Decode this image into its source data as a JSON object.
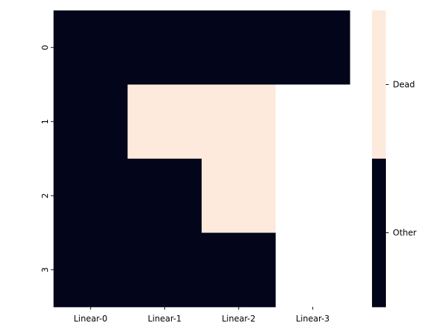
{
  "chart_data": {
    "type": "heatmap",
    "x_categories": [
      "Linear-0",
      "Linear-1",
      "Linear-2",
      "Linear-3"
    ],
    "y_categories": [
      "0",
      "1",
      "2",
      "3"
    ],
    "cells": [
      [
        "Other",
        "Other",
        "Other",
        "Other"
      ],
      [
        "Other",
        "Dead",
        "Dead",
        null
      ],
      [
        "Other",
        "Other",
        "Dead",
        null
      ],
      [
        "Other",
        "Other",
        "Other",
        null
      ]
    ],
    "legend": {
      "position": "right",
      "entries": [
        {
          "label": "Dead",
          "color": "#fdeadc"
        },
        {
          "label": "Other",
          "color": "#03051a"
        }
      ]
    },
    "missing_color": "#ffffff",
    "grid": false
  }
}
